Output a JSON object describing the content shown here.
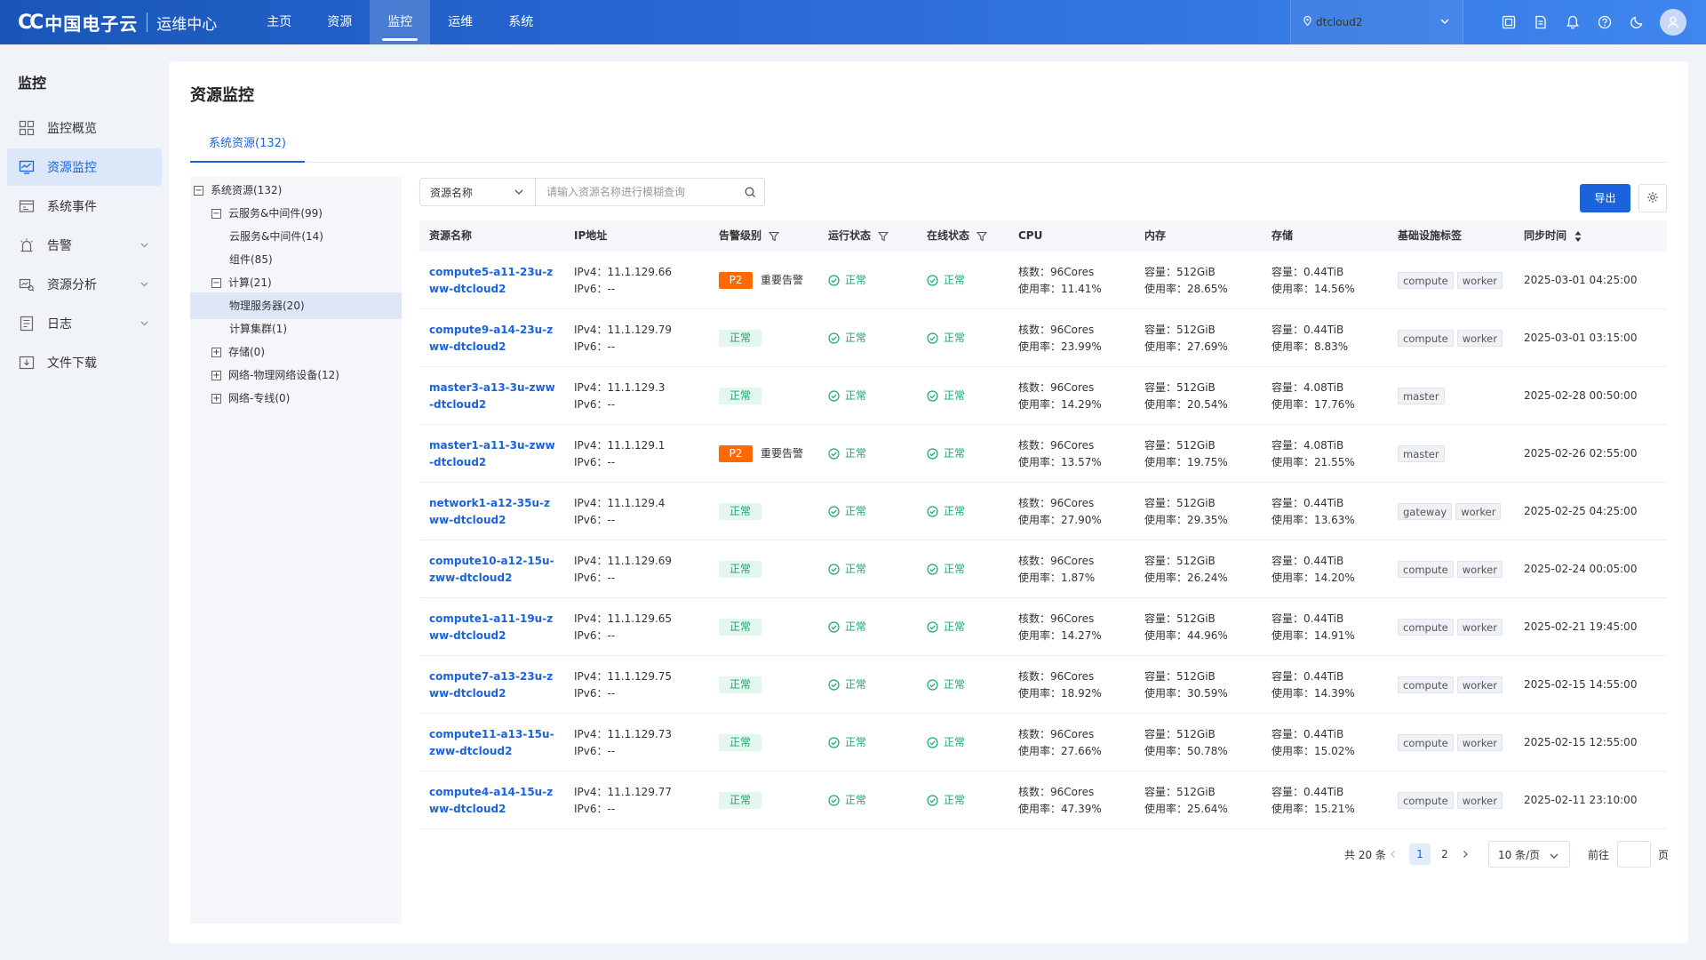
{
  "brand": {
    "logo_text": "中国电子云",
    "subtitle": "运维中心"
  },
  "nav": [
    {
      "label": "主页"
    },
    {
      "label": "资源"
    },
    {
      "label": "监控"
    },
    {
      "label": "运维"
    },
    {
      "label": "系统"
    }
  ],
  "nav_active": "监控",
  "tenant": {
    "name": "dtcloud2"
  },
  "top_icons": [
    "screen-icon",
    "document-icon",
    "bell-icon",
    "help-icon",
    "moon-icon",
    "user-avatar-icon"
  ],
  "sidebar": {
    "title": "监控",
    "items": [
      {
        "label": "监控概览",
        "icon": "grid-icon"
      },
      {
        "label": "资源监控",
        "icon": "monitor-chart-icon"
      },
      {
        "label": "系统事件",
        "icon": "event-icon"
      },
      {
        "label": "告警",
        "icon": "alarm-icon"
      },
      {
        "label": "资源分析",
        "icon": "analysis-icon"
      },
      {
        "label": "日志",
        "icon": "log-icon"
      },
      {
        "label": "文件下载",
        "icon": "download-icon"
      }
    ]
  },
  "page": {
    "title": "资源监控",
    "tab": "系统资源(132)"
  },
  "tree": [
    {
      "label": "系统资源(132)",
      "box": "−"
    },
    {
      "label": "云服务&中间件(99)",
      "box": "−"
    },
    {
      "label": "云服务&中间件(14)",
      "box": ""
    },
    {
      "label": "组件(85)",
      "box": ""
    },
    {
      "label": "计算(21)",
      "box": "−"
    },
    {
      "label": "物理服务器(20)",
      "box": ""
    },
    {
      "label": "计算集群(1)",
      "box": ""
    },
    {
      "label": "存储(0)",
      "box": "+"
    },
    {
      "label": "网络-物理网络设备(12)",
      "box": "+"
    },
    {
      "label": "网络-专线(0)",
      "box": "+"
    }
  ],
  "search": {
    "select_label": "资源名称",
    "placeholder": "请输入资源名称进行模糊查询"
  },
  "toolbar": {
    "export_label": "导出"
  },
  "table": {
    "headers": {
      "name": "资源名称",
      "ip": "IP地址",
      "alarm": "告警级别",
      "run": "运行状态",
      "online": "在线状态",
      "cpu": "CPU",
      "mem": "内存",
      "storage": "存储",
      "tags": "基础设施标签",
      "sync": "同步时间"
    },
    "rows": [
      {
        "name": "compute5-a11-23u-zww-dtcloud2",
        "ipv4": "IPv4：11.1.129.66",
        "ipv6": "IPv6：--",
        "alarm_level": "P2",
        "alarm_text": "重要告警",
        "run": "正常",
        "online": "正常",
        "cpu_cores": "核数：96Cores",
        "cpu_usage": "使用率：11.41%",
        "mem_cap": "容量：512GiB",
        "mem_usage": "使用率：28.65%",
        "sto_cap": "容量：0.44TiB",
        "sto_usage": "使用率：14.56%",
        "tags": [
          "compute",
          "worker"
        ],
        "sync": "2025-03-01 04:25:00"
      },
      {
        "name": "compute9-a14-23u-zww-dtcloud2",
        "ipv4": "IPv4：11.1.129.79",
        "ipv6": "IPv6：--",
        "alarm_level": "",
        "alarm_text": "正常",
        "run": "正常",
        "online": "正常",
        "cpu_cores": "核数：96Cores",
        "cpu_usage": "使用率：23.99%",
        "mem_cap": "容量：512GiB",
        "mem_usage": "使用率：27.69%",
        "sto_cap": "容量：0.44TiB",
        "sto_usage": "使用率：8.83%",
        "tags": [
          "compute",
          "worker"
        ],
        "sync": "2025-03-01 03:15:00"
      },
      {
        "name": "master3-a13-3u-zww-dtcloud2",
        "ipv4": "IPv4：11.1.129.3",
        "ipv6": "IPv6：--",
        "alarm_level": "",
        "alarm_text": "正常",
        "run": "正常",
        "online": "正常",
        "cpu_cores": "核数：96Cores",
        "cpu_usage": "使用率：14.29%",
        "mem_cap": "容量：512GiB",
        "mem_usage": "使用率：20.54%",
        "sto_cap": "容量：4.08TiB",
        "sto_usage": "使用率：17.76%",
        "tags": [
          "master"
        ],
        "sync": "2025-02-28 00:50:00"
      },
      {
        "name": "master1-a11-3u-zww-dtcloud2",
        "ipv4": "IPv4：11.1.129.1",
        "ipv6": "IPv6：--",
        "alarm_level": "P2",
        "alarm_text": "重要告警",
        "run": "正常",
        "online": "正常",
        "cpu_cores": "核数：96Cores",
        "cpu_usage": "使用率：13.57%",
        "mem_cap": "容量：512GiB",
        "mem_usage": "使用率：19.75%",
        "sto_cap": "容量：4.08TiB",
        "sto_usage": "使用率：21.55%",
        "tags": [
          "master"
        ],
        "sync": "2025-02-26 02:55:00"
      },
      {
        "name": "network1-a12-35u-zww-dtcloud2",
        "ipv4": "IPv4：11.1.129.4",
        "ipv6": "IPv6：--",
        "alarm_level": "",
        "alarm_text": "正常",
        "run": "正常",
        "online": "正常",
        "cpu_cores": "核数：96Cores",
        "cpu_usage": "使用率：27.90%",
        "mem_cap": "容量：512GiB",
        "mem_usage": "使用率：29.35%",
        "sto_cap": "容量：0.44TiB",
        "sto_usage": "使用率：13.63%",
        "tags": [
          "gateway",
          "worker"
        ],
        "sync": "2025-02-25 04:25:00"
      },
      {
        "name": "compute10-a12-15u-zww-dtcloud2",
        "ipv4": "IPv4：11.1.129.69",
        "ipv6": "IPv6：--",
        "alarm_level": "",
        "alarm_text": "正常",
        "run": "正常",
        "online": "正常",
        "cpu_cores": "核数：96Cores",
        "cpu_usage": "使用率：1.87%",
        "mem_cap": "容量：512GiB",
        "mem_usage": "使用率：26.24%",
        "sto_cap": "容量：0.44TiB",
        "sto_usage": "使用率：14.20%",
        "tags": [
          "compute",
          "worker"
        ],
        "sync": "2025-02-24 00:05:00"
      },
      {
        "name": "compute1-a11-19u-zww-dtcloud2",
        "ipv4": "IPv4：11.1.129.65",
        "ipv6": "IPv6：--",
        "alarm_level": "",
        "alarm_text": "正常",
        "run": "正常",
        "online": "正常",
        "cpu_cores": "核数：96Cores",
        "cpu_usage": "使用率：14.27%",
        "mem_cap": "容量：512GiB",
        "mem_usage": "使用率：44.96%",
        "sto_cap": "容量：0.44TiB",
        "sto_usage": "使用率：14.91%",
        "tags": [
          "compute",
          "worker"
        ],
        "sync": "2025-02-21 19:45:00"
      },
      {
        "name": "compute7-a13-23u-zww-dtcloud2",
        "ipv4": "IPv4：11.1.129.75",
        "ipv6": "IPv6：--",
        "alarm_level": "",
        "alarm_text": "正常",
        "run": "正常",
        "online": "正常",
        "cpu_cores": "核数：96Cores",
        "cpu_usage": "使用率：18.92%",
        "mem_cap": "容量：512GiB",
        "mem_usage": "使用率：30.59%",
        "sto_cap": "容量：0.44TiB",
        "sto_usage": "使用率：14.39%",
        "tags": [
          "compute",
          "worker"
        ],
        "sync": "2025-02-15 14:55:00"
      },
      {
        "name": "compute11-a13-15u-zww-dtcloud2",
        "ipv4": "IPv4：11.1.129.73",
        "ipv6": "IPv6：--",
        "alarm_level": "",
        "alarm_text": "正常",
        "run": "正常",
        "online": "正常",
        "cpu_cores": "核数：96Cores",
        "cpu_usage": "使用率：27.66%",
        "mem_cap": "容量：512GiB",
        "mem_usage": "使用率：50.78%",
        "sto_cap": "容量：0.44TiB",
        "sto_usage": "使用率：15.02%",
        "tags": [
          "compute",
          "worker"
        ],
        "sync": "2025-02-15 12:55:00"
      },
      {
        "name": "compute4-a14-15u-zww-dtcloud2",
        "ipv4": "IPv4：11.1.129.77",
        "ipv6": "IPv6：--",
        "alarm_level": "",
        "alarm_text": "正常",
        "run": "正常",
        "online": "正常",
        "cpu_cores": "核数：96Cores",
        "cpu_usage": "使用率：47.39%",
        "mem_cap": "容量：512GiB",
        "mem_usage": "使用率：25.64%",
        "sto_cap": "容量：0.44TiB",
        "sto_usage": "使用率：15.21%",
        "tags": [
          "compute",
          "worker"
        ],
        "sync": "2025-02-11 23:10:00"
      }
    ]
  },
  "pagination": {
    "total": "共 20 条",
    "pages": [
      "1",
      "2"
    ],
    "current": "1",
    "page_size": "10 条/页",
    "goto_label": "前往",
    "goto_unit": "页"
  },
  "colors": {
    "primary": "#1a63db",
    "alarm_p2": "#ff6a00",
    "ok_green": "#18a86b"
  }
}
